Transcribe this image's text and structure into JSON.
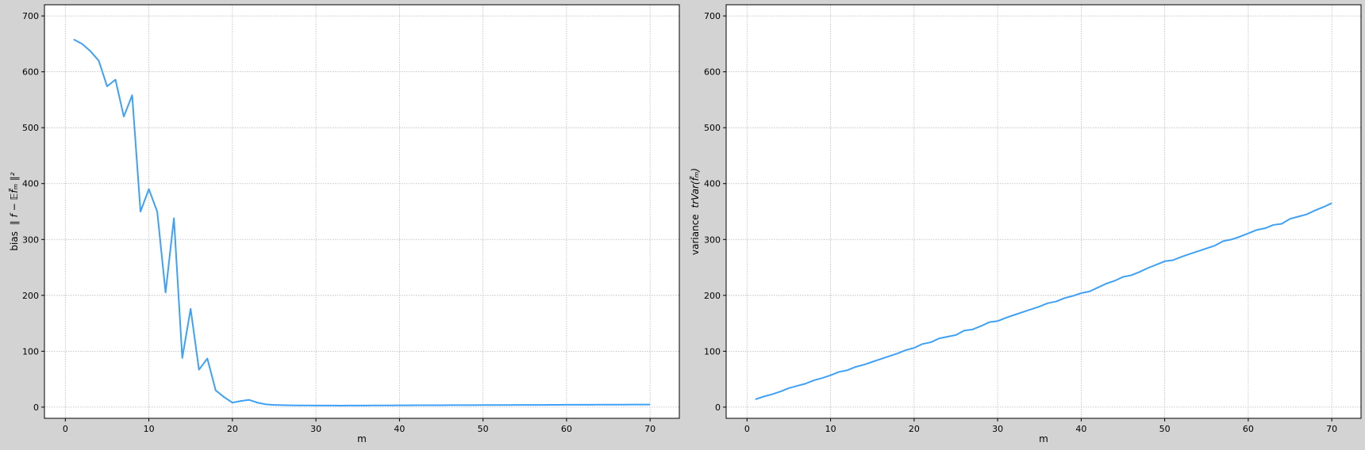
{
  "figure": {
    "background": "#d3d3d3",
    "plot_background": "#ffffff",
    "line_color": "#3fa1f5",
    "grid_color": "#b8b8b8"
  },
  "chart_data": [
    {
      "type": "line",
      "xlabel": "m",
      "ylabel": "bias",
      "ylabel_math": "∥ f − 𝔼f̃ₘ ∥²",
      "xlim": [
        -2.5,
        73.5
      ],
      "ylim": [
        -20,
        720
      ],
      "xticks": [
        0,
        10,
        20,
        30,
        40,
        50,
        60,
        70
      ],
      "yticks": [
        0,
        100,
        200,
        300,
        400,
        500,
        600,
        700
      ],
      "grid": true,
      "series": [
        {
          "x": [
            1,
            2,
            3,
            4,
            5,
            6,
            7,
            8,
            9,
            10,
            11,
            12,
            13,
            14,
            15,
            16,
            17,
            18,
            19,
            20,
            21,
            22,
            23,
            24,
            25,
            26,
            27,
            28,
            29,
            30,
            31,
            32,
            33,
            34,
            35,
            36,
            37,
            38,
            39,
            40,
            41,
            42,
            43,
            44,
            45,
            46,
            47,
            48,
            49,
            50,
            51,
            52,
            53,
            54,
            55,
            56,
            57,
            58,
            59,
            60,
            61,
            62,
            63,
            64,
            65,
            66,
            67,
            68,
            69,
            70
          ],
          "values": [
            658,
            650,
            637,
            620,
            574,
            586,
            520,
            558,
            350,
            390,
            350,
            205,
            338,
            88,
            176,
            67,
            87,
            30,
            18,
            8,
            11,
            13,
            8,
            5,
            4,
            3.5,
            3.2,
            3,
            3,
            2.8,
            2.8,
            2.9,
            2.7,
            2.8,
            2.9,
            2.9,
            3,
            3,
            3.1,
            3.2,
            3.2,
            3.3,
            3.3,
            3.4,
            3.4,
            3.5,
            3.5,
            3.6,
            3.6,
            3.7,
            3.7,
            3.8,
            3.8,
            3.9,
            3.9,
            4,
            4,
            4.1,
            4.1,
            4.2,
            4.2,
            4.3,
            4.3,
            4.4,
            4.4,
            4.5,
            4.5,
            4.6,
            4.6,
            4.7
          ]
        }
      ]
    },
    {
      "type": "line",
      "xlabel": "m",
      "ylabel": "variance",
      "ylabel_math": "trVar(f̃ₘ)",
      "xlim": [
        -2.5,
        73.5
      ],
      "ylim": [
        -20,
        720
      ],
      "xticks": [
        0,
        10,
        20,
        30,
        40,
        50,
        60,
        70
      ],
      "yticks": [
        0,
        100,
        200,
        300,
        400,
        500,
        600,
        700
      ],
      "grid": true,
      "series": [
        {
          "x": [
            1,
            2,
            3,
            4,
            5,
            6,
            7,
            8,
            9,
            10,
            11,
            12,
            13,
            14,
            15,
            16,
            17,
            18,
            19,
            20,
            21,
            22,
            23,
            24,
            25,
            26,
            27,
            28,
            29,
            30,
            31,
            32,
            33,
            34,
            35,
            36,
            37,
            38,
            39,
            40,
            41,
            42,
            43,
            44,
            45,
            46,
            47,
            48,
            49,
            50,
            51,
            52,
            53,
            54,
            55,
            56,
            57,
            58,
            59,
            60,
            61,
            62,
            63,
            64,
            65,
            66,
            67,
            68,
            69,
            70
          ],
          "values": [
            14,
            19,
            23,
            28,
            34,
            38,
            42,
            48,
            52,
            57,
            63,
            66,
            72,
            76,
            81,
            86,
            91,
            96,
            102,
            106,
            113,
            116,
            123,
            126,
            129,
            137,
            139,
            145,
            152,
            154,
            160,
            165,
            170,
            175,
            180,
            186,
            189,
            195,
            199,
            204,
            207,
            214,
            221,
            226,
            233,
            236,
            242,
            249,
            255,
            261,
            263,
            269,
            274,
            279,
            284,
            289,
            297,
            300,
            305,
            311,
            317,
            320,
            326,
            328,
            337,
            341,
            345,
            352,
            358,
            365
          ]
        }
      ]
    }
  ]
}
